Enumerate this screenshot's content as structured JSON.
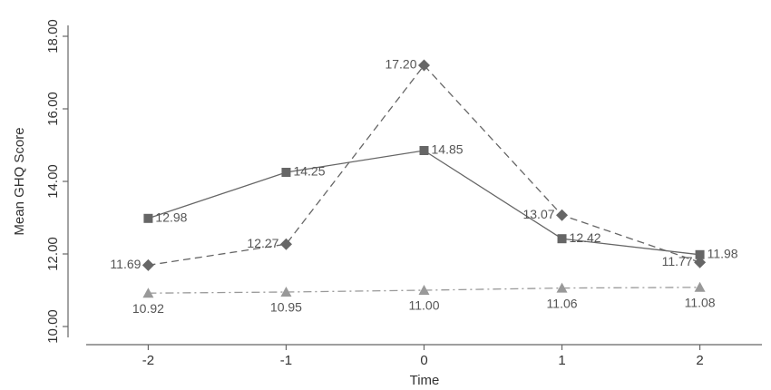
{
  "chart_data": {
    "type": "line",
    "x_label": "Time",
    "y_label": "Mean GHQ Score",
    "x": [
      -2,
      -1,
      0,
      1,
      2
    ],
    "xlim": [
      -2.45,
      2.45
    ],
    "xticks": [
      -2,
      -1,
      0,
      1,
      2
    ],
    "ylim": [
      9.7,
      18.3
    ],
    "yticks": [
      {
        "value": 10,
        "label": "10.00"
      },
      {
        "value": 12,
        "label": "12.00"
      },
      {
        "value": 14,
        "label": "14.00"
      },
      {
        "value": 16,
        "label": "16.00"
      },
      {
        "value": 18,
        "label": "18.00"
      }
    ],
    "series": [
      {
        "color": "#666666",
        "marker": "square",
        "dash": "solid",
        "values": [
          12.98,
          14.25,
          14.85,
          12.42,
          11.98
        ],
        "value_labels": [
          "12.98",
          "14.25",
          "14.85",
          "12.42",
          "11.98"
        ]
      },
      {
        "color": "#666666",
        "marker": "diamond",
        "dash": "dashed",
        "values": [
          11.69,
          12.27,
          17.2,
          13.07,
          11.77
        ],
        "value_labels": [
          "11.69",
          "12.27",
          "17.20",
          "13.07",
          "11.77"
        ]
      },
      {
        "color": "#999999",
        "marker": "triangle",
        "dash": "dashdot",
        "values": [
          10.92,
          10.95,
          11.0,
          11.06,
          11.08
        ],
        "value_labels": [
          "10.92",
          "10.95",
          "11.00",
          "11.06",
          "11.08"
        ]
      }
    ]
  }
}
